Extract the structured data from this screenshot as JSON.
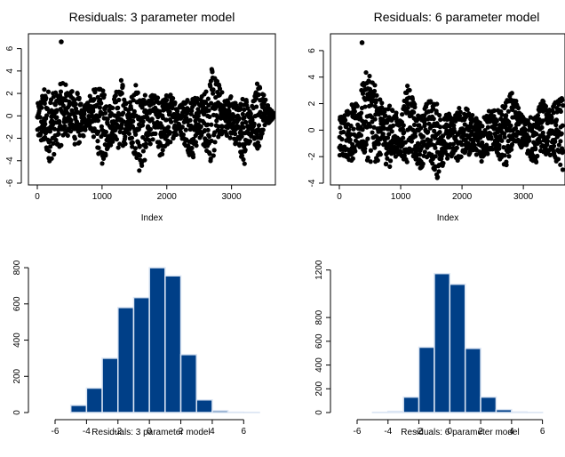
{
  "chart_data": [
    {
      "type": "scatter",
      "title": "Residuals: 3 parameter model",
      "xlabel": "Index",
      "ylabel": "",
      "xlim": [
        0,
        3650
      ],
      "ylim": [
        -6,
        7
      ],
      "xticks": [
        "0",
        "1000",
        "2000",
        "3000"
      ],
      "yticks": [
        "-6",
        "-4",
        "-2",
        "0",
        "2",
        "4",
        "6"
      ],
      "n_points": 3650,
      "series": [
        {
          "x": [
            0,
            100,
            200,
            300,
            400,
            500,
            600,
            700,
            800,
            900,
            1000,
            1100,
            1200,
            1300,
            1400,
            1500,
            1600,
            1700,
            1800,
            1900,
            2000,
            2100,
            2200,
            2300,
            2400,
            2500,
            2600,
            2700,
            2800,
            2900,
            3000,
            3100,
            3200,
            3300,
            3400,
            3500,
            3600
          ],
          "y_min": [
            -2.2,
            -3.0,
            -4.2,
            -3.0,
            -2.5,
            -1.5,
            -3.0,
            -2.0,
            -1.0,
            -2.5,
            -4.5,
            -3.0,
            -2.0,
            -4.0,
            -1.5,
            -3.5,
            -5.6,
            -3.0,
            -2.0,
            -4.0,
            -3.0,
            -2.0,
            -1.5,
            -3.0,
            -4.0,
            -2.0,
            -3.0,
            -4.5,
            -2.0,
            -1.5,
            -2.5,
            -2.5,
            -4.8,
            -2.0,
            -3.5,
            -1.0,
            -0.5
          ],
          "y_max": [
            1.0,
            2.5,
            2.5,
            2.0,
            3.5,
            2.0,
            2.8,
            0.5,
            2.0,
            2.5,
            2.5,
            1.0,
            2.0,
            3.5,
            0.5,
            3.0,
            2.5,
            1.5,
            2.0,
            1.5,
            2.0,
            2.0,
            1.0,
            2.0,
            2.0,
            1.5,
            2.5,
            4.3,
            3.0,
            1.5,
            2.0,
            1.0,
            2.0,
            0.5,
            3.2,
            2.0,
            0.5
          ]
        }
      ],
      "outliers": [
        {
          "x": 370,
          "y": 6.6
        }
      ]
    },
    {
      "type": "scatter",
      "title": "Residuals: 6 parameter model",
      "xlabel": "Index",
      "ylabel": "",
      "xlim": [
        0,
        3650
      ],
      "ylim": [
        -4,
        7
      ],
      "xticks": [
        "0",
        "1000",
        "2000",
        "3000"
      ],
      "yticks": [
        "-4",
        "-2",
        "0",
        "2",
        "4",
        "6"
      ],
      "n_points": 3650,
      "series": [
        {
          "x": [
            0,
            100,
            200,
            300,
            400,
            500,
            600,
            700,
            800,
            900,
            1000,
            1100,
            1200,
            1300,
            1400,
            1500,
            1600,
            1700,
            1800,
            1900,
            2000,
            2100,
            2200,
            2300,
            2400,
            2500,
            2600,
            2700,
            2800,
            2900,
            3000,
            3100,
            3200,
            3300,
            3400,
            3500,
            3600
          ],
          "y_min": [
            -2.0,
            -2.0,
            -2.5,
            -1.5,
            -2.0,
            -2.5,
            -2.5,
            -2.0,
            -3.0,
            -2.0,
            -2.0,
            -2.5,
            -2.0,
            -3.0,
            -2.5,
            -2.5,
            -3.8,
            -2.5,
            -2.0,
            -2.5,
            -2.0,
            -2.0,
            -1.5,
            -2.5,
            -2.0,
            -1.5,
            -2.0,
            -3.0,
            -1.5,
            -1.0,
            -1.5,
            -2.0,
            -2.8,
            -1.5,
            -2.0,
            -2.5,
            -3.0
          ],
          "y_max": [
            1.2,
            1.5,
            2.0,
            2.0,
            4.0,
            5.0,
            3.0,
            2.0,
            2.0,
            1.5,
            1.0,
            3.5,
            2.5,
            1.0,
            2.0,
            2.5,
            2.0,
            1.0,
            1.5,
            1.5,
            2.0,
            1.5,
            1.0,
            1.0,
            1.5,
            1.5,
            1.5,
            2.0,
            3.0,
            2.0,
            1.0,
            1.0,
            1.0,
            2.5,
            1.5,
            2.0,
            2.5
          ]
        }
      ],
      "outliers": [
        {
          "x": 370,
          "y": 6.6
        }
      ]
    },
    {
      "type": "bar",
      "title": "",
      "xlabel": "Residuals: 3 parameter model",
      "ylabel": "",
      "xlim": [
        -6,
        7
      ],
      "ylim": [
        0,
        820
      ],
      "xticks": [
        "-6",
        "-4",
        "-2",
        "0",
        "2",
        "4",
        "6"
      ],
      "yticks": [
        "0",
        "200",
        "400",
        "600",
        "800"
      ],
      "bin_edges": [
        -6,
        -5,
        -4,
        -3,
        -2,
        -1,
        0,
        1,
        2,
        3,
        4,
        5,
        6,
        7
      ],
      "values": [
        0,
        40,
        135,
        300,
        580,
        635,
        800,
        755,
        320,
        70,
        10,
        2,
        1
      ]
    },
    {
      "type": "bar",
      "title": "",
      "xlabel": "Residuals: 6 parameter model",
      "ylabel": "",
      "xlim": [
        -6,
        7
      ],
      "ylim": [
        0,
        1250
      ],
      "xticks": [
        "-6",
        "-4",
        "-2",
        "0",
        "2",
        "4",
        "6"
      ],
      "yticks": [
        "0",
        "200",
        "400",
        "600",
        "800",
        "1200"
      ],
      "bin_edges": [
        -6,
        -5,
        -4,
        -3,
        -2,
        -1,
        0,
        1,
        2,
        3,
        4,
        5,
        6,
        7
      ],
      "values": [
        0,
        2,
        10,
        130,
        550,
        1170,
        1080,
        540,
        130,
        25,
        5,
        1,
        0
      ]
    }
  ],
  "colors": {
    "points": "#000000",
    "bar_fill": "#003f87",
    "bar_edge": "#dce6f4",
    "axis": "#000000"
  }
}
